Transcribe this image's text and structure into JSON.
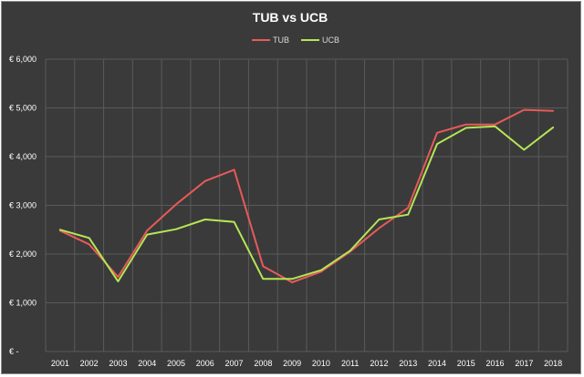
{
  "chart_data": {
    "type": "line",
    "title": "TUB vs UCB",
    "categories": [
      "2001",
      "2002",
      "2003",
      "2004",
      "2005",
      "2006",
      "2007",
      "2008",
      "2009",
      "2010",
      "2011",
      "2012",
      "2013",
      "2014",
      "2015",
      "2016",
      "2017",
      "2018"
    ],
    "series": [
      {
        "name": "TUB",
        "color": "#e85a5a",
        "values": [
          2480,
          2200,
          1530,
          2480,
          3020,
          3500,
          3730,
          1750,
          1420,
          1640,
          2050,
          2530,
          2950,
          4490,
          4660,
          4660,
          4960,
          4940
        ]
      },
      {
        "name": "UCB",
        "color": "#b5e655",
        "values": [
          2500,
          2330,
          1440,
          2400,
          2510,
          2710,
          2660,
          1490,
          1490,
          1670,
          2070,
          2710,
          2810,
          4260,
          4590,
          4620,
          4140,
          4600
        ]
      }
    ],
    "ylim": [
      0,
      6000
    ],
    "ytick_values": [
      0,
      1000,
      2000,
      3000,
      4000,
      5000,
      6000
    ],
    "ytick_labels": [
      "€ -",
      "€ 1,000",
      "€ 2,000",
      "€ 3,000",
      "€ 4,000",
      "€ 5,000",
      "€ 6,000"
    ],
    "legend_position": "top-center",
    "grid": "vertical and horizontal"
  }
}
